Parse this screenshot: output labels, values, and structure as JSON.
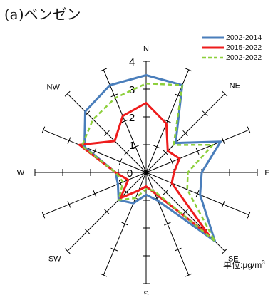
{
  "panel_label": "(a)ベンゼン",
  "unit": {
    "prefix": "単位:",
    "base": "μg/m",
    "exp": "3"
  },
  "chart_data": {
    "type": "radar",
    "directions": [
      "N",
      "NNE",
      "NE",
      "ENE",
      "E",
      "ESE",
      "SE",
      "SSE",
      "S",
      "SSW",
      "SW",
      "WSW",
      "W",
      "WNW",
      "NW",
      "NNW"
    ],
    "direction_labels_shown": [
      "N",
      "NE",
      "E",
      "SE",
      "S",
      "SW",
      "W",
      "NW"
    ],
    "radial_ticks": [
      "0",
      "1",
      "2",
      "3",
      "4"
    ],
    "rmax": 4,
    "legend_position": "top-right",
    "series": [
      {
        "name": "2002-2014",
        "color": "#4a7ebb",
        "dash": "solid",
        "values": [
          3.5,
          3.4,
          1.5,
          2.9,
          2.0,
          2.1,
          3.5,
          1.1,
          0.8,
          1.2,
          1.4,
          1.1,
          1.1,
          2.4,
          3.1,
          3.4
        ]
      },
      {
        "name": "2015-2022",
        "color": "#ee1c1c",
        "dash": "solid",
        "values": [
          2.5,
          1.9,
          1.1,
          1.3,
          1.0,
          1.0,
          3.2,
          0.8,
          0.5,
          0.7,
          1.3,
          0.7,
          1.1,
          2.6,
          1.6,
          2.2
        ]
      },
      {
        "name": "2002-2022",
        "color": "#8ccf3a",
        "dash": "dashed",
        "values": [
          3.2,
          3.4,
          1.4,
          2.6,
          1.5,
          1.6,
          3.5,
          0.7,
          0.6,
          1.0,
          1.4,
          0.9,
          1.1,
          2.5,
          2.7,
          2.9
        ]
      }
    ]
  }
}
